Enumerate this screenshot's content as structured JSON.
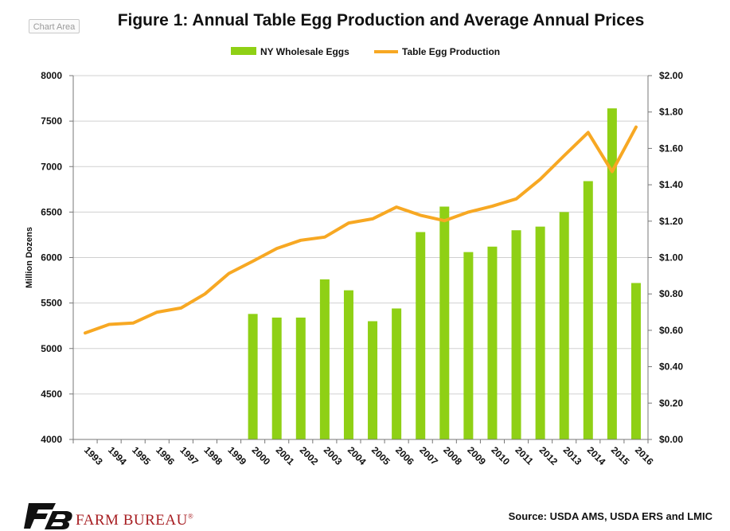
{
  "chart_area_label": "Chart Area",
  "brand": {
    "name": "FARM BUREAU",
    "mark": "®"
  },
  "source": "Source:  USDA AMS, USDA ERS and LMIC",
  "colors": {
    "bars": "#8fd015",
    "line": "#f7a823",
    "grid": "#d0d0d0",
    "axis": "#777777",
    "brand": "#a71e22"
  },
  "chart_data": {
    "type": "bar+line",
    "title": "Figure 1: Annual Table Egg Production and Average Annual Prices",
    "ylabel": "Million Dozens",
    "categories": [
      "1993",
      "1994",
      "1995",
      "1996",
      "1997",
      "1998",
      "1999",
      "2000",
      "2001",
      "2002",
      "2003",
      "2004",
      "2005",
      "2006",
      "2007",
      "2008",
      "2009",
      "2010",
      "2011",
      "2012",
      "2013",
      "2014",
      "2015",
      "2016"
    ],
    "y_left": {
      "range": [
        4000,
        8000
      ],
      "ticks": [
        "4000",
        "4500",
        "5000",
        "5500",
        "6000",
        "6500",
        "7000",
        "7500",
        "8000"
      ]
    },
    "y_right": {
      "range": [
        0,
        2
      ],
      "ticks": [
        "$0.00",
        "$0.20",
        "$0.40",
        "$0.60",
        "$0.80",
        "$1.00",
        "$1.20",
        "$1.40",
        "$1.60",
        "$1.80",
        "$2.00"
      ]
    },
    "series": [
      {
        "name": "NY Wholesale Eggs",
        "type": "bar",
        "axis": "right",
        "values": [
          null,
          null,
          null,
          null,
          null,
          null,
          null,
          0.69,
          0.67,
          0.67,
          0.88,
          0.82,
          0.65,
          0.72,
          1.14,
          1.28,
          1.03,
          1.06,
          1.15,
          1.17,
          1.25,
          1.42,
          1.82,
          0.86
        ]
      },
      {
        "name": "Table Egg Production",
        "type": "line",
        "axis": "left",
        "values": [
          5170,
          5265,
          5280,
          5400,
          5445,
          5600,
          5825,
          5960,
          6100,
          6190,
          6225,
          6380,
          6425,
          6555,
          6465,
          6405,
          6500,
          6565,
          6645,
          6860,
          7120,
          7375,
          6945,
          7435
        ]
      }
    ],
    "legend": "top-center"
  }
}
